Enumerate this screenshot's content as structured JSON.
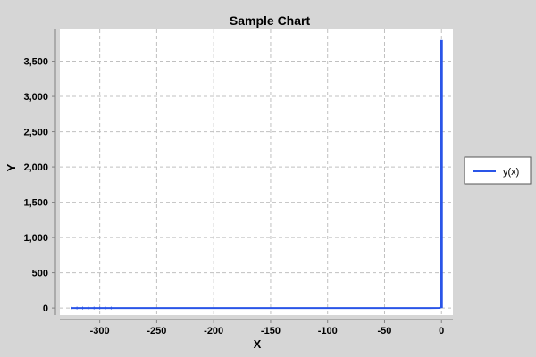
{
  "chart_data": {
    "type": "line",
    "title": "Sample Chart",
    "xlabel": "X",
    "ylabel": "Y",
    "xlim": [
      -335,
      10
    ],
    "ylim": [
      -100,
      3950
    ],
    "x_ticks": [
      -300,
      -250,
      -200,
      -150,
      -100,
      -50,
      0
    ],
    "x_tick_labels": [
      "-300",
      "-250",
      "-200",
      "-150",
      "-100",
      "-50",
      "0"
    ],
    "y_ticks": [
      0,
      500,
      1000,
      1500,
      2000,
      2500,
      3000,
      3500
    ],
    "y_tick_labels": [
      "0",
      "500",
      "1,000",
      "1,500",
      "2,000",
      "2,500",
      "3,000",
      "3,500"
    ],
    "grid": true,
    "legend_position": "right",
    "series": [
      {
        "name": "y(x)",
        "color": "#2a55e8",
        "x": [
          -325,
          -320,
          -315,
          -310,
          -305,
          -300,
          -295,
          -290,
          -250,
          -200,
          -150,
          -100,
          -50,
          -10,
          -2,
          -1,
          -0.5,
          -0.2,
          -0.1
        ],
        "y": [
          0,
          0,
          0,
          0,
          0,
          0,
          0,
          0,
          0,
          0,
          0,
          0,
          0,
          0,
          1,
          5,
          30,
          300,
          3800
        ]
      }
    ]
  }
}
